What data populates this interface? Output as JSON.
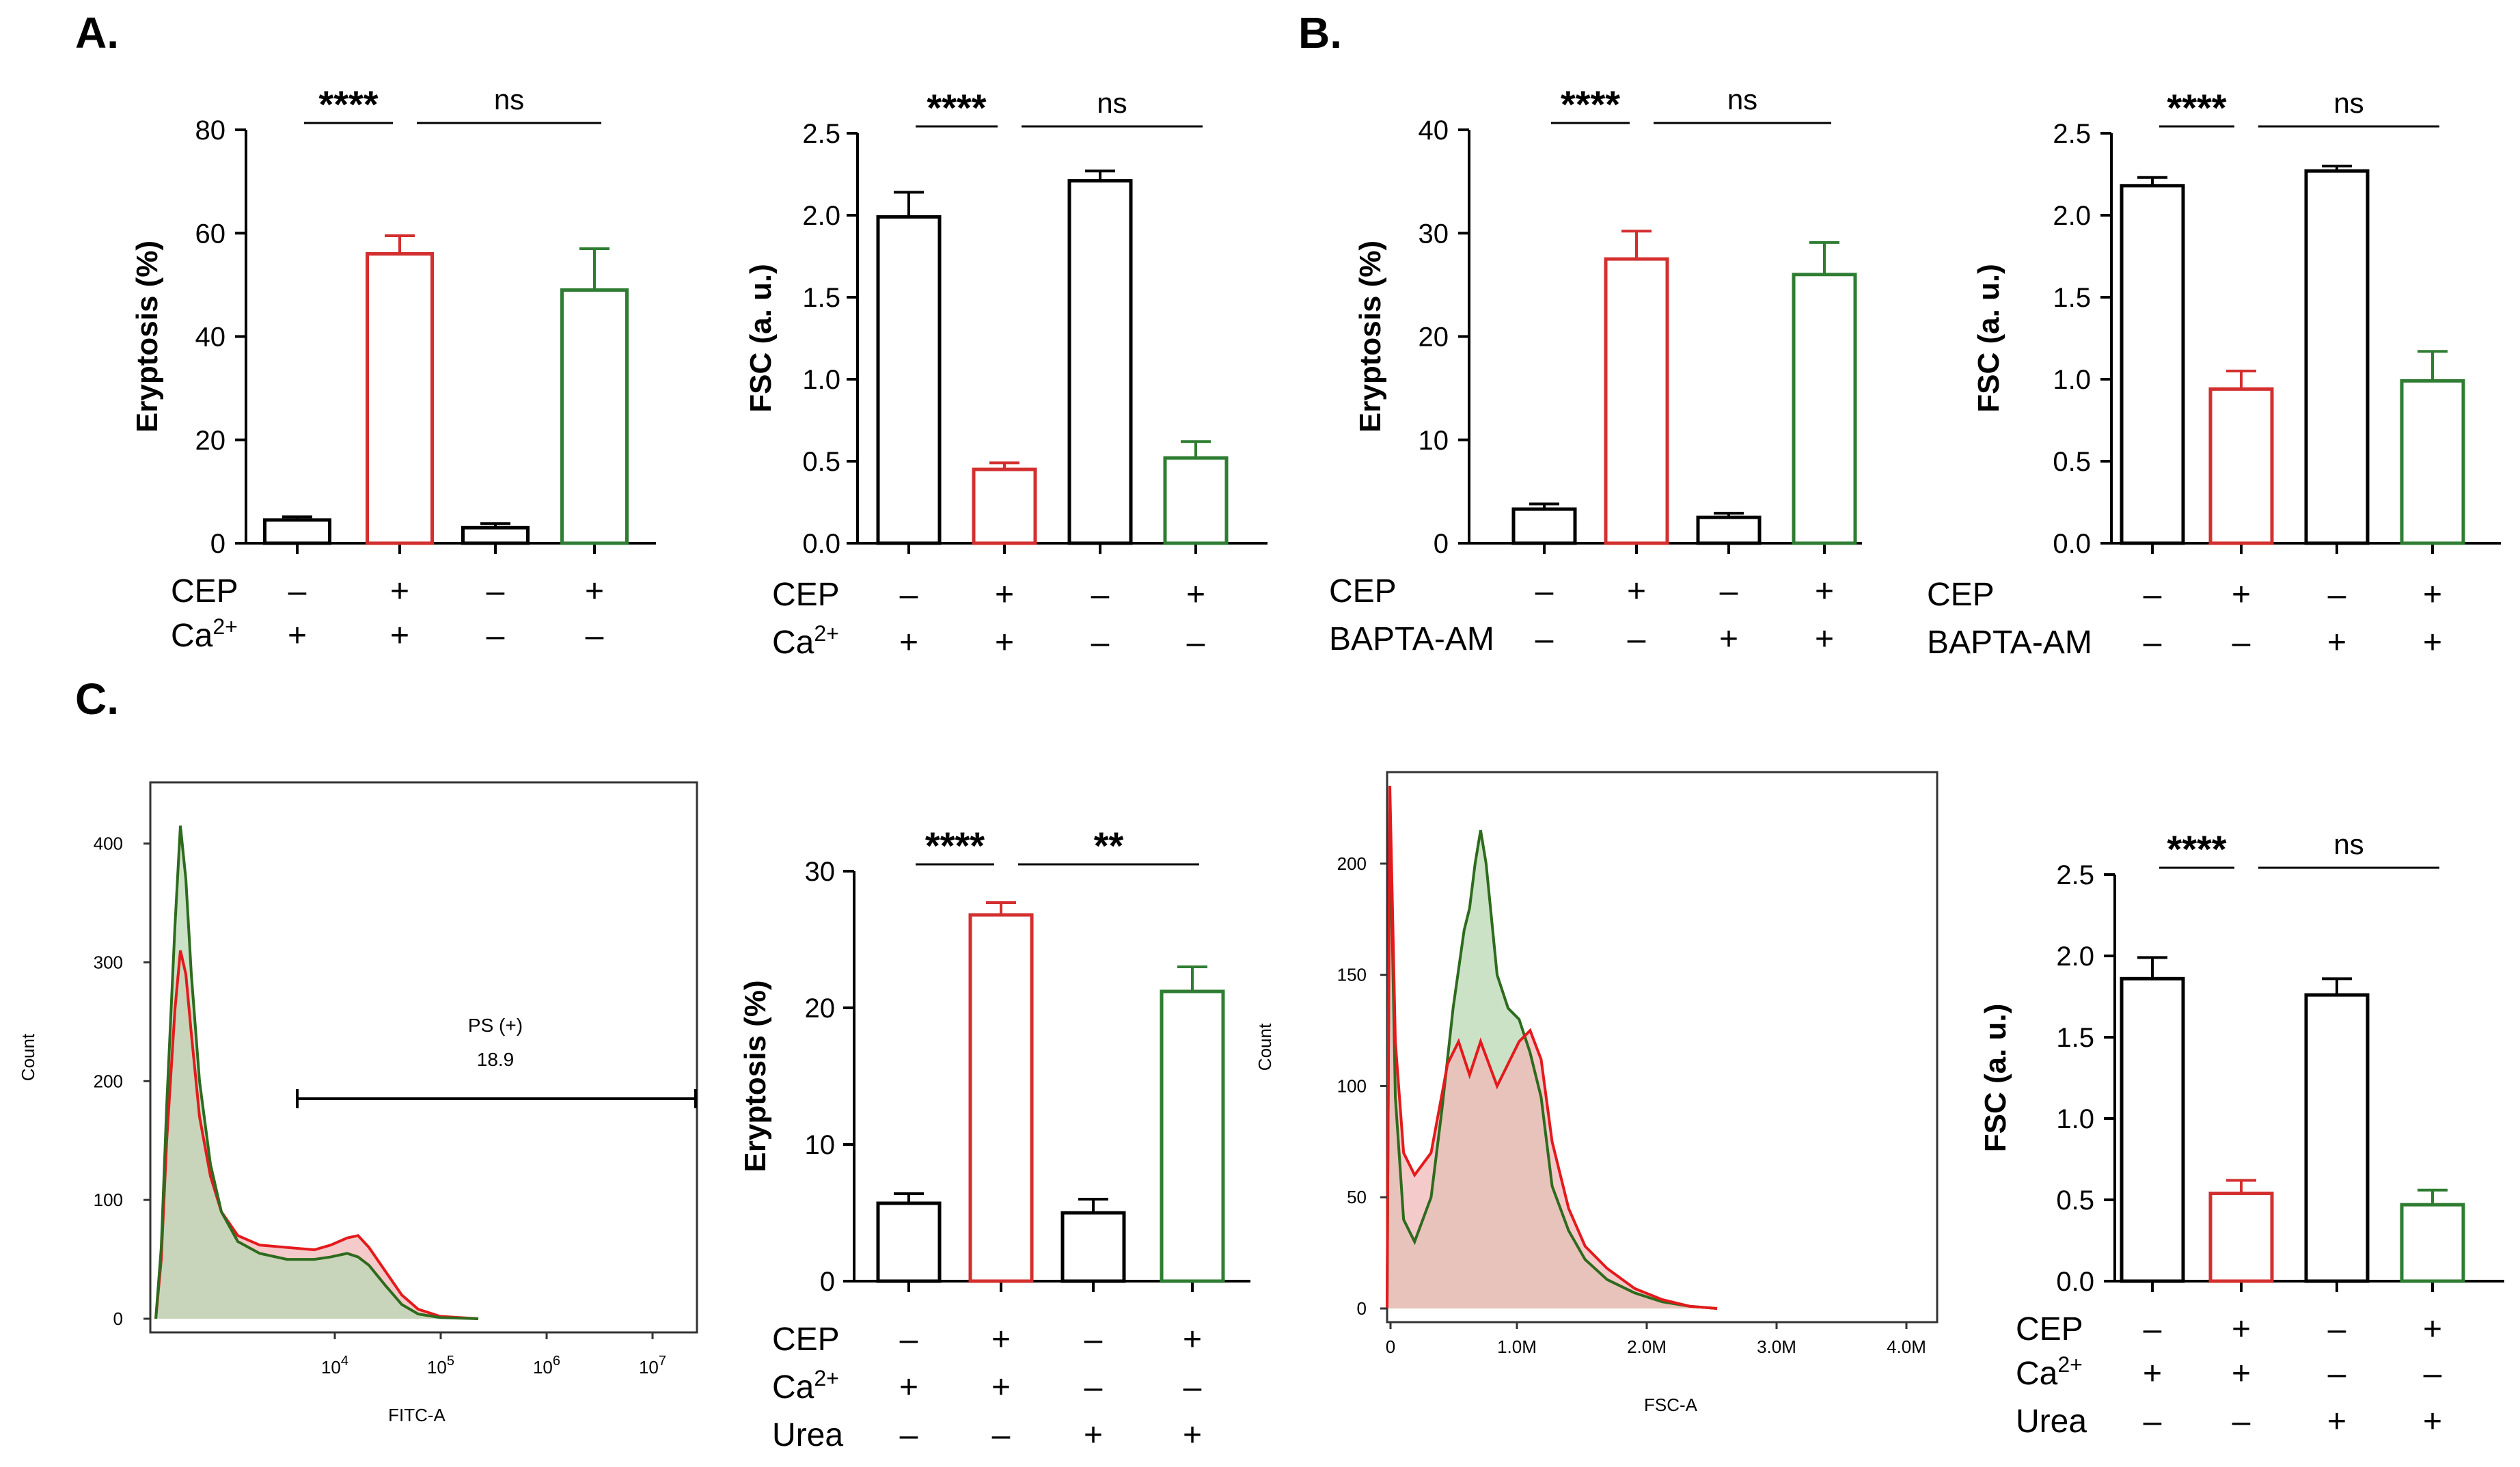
{
  "panel_labels": [
    "A.",
    "B.",
    "C."
  ],
  "colors": {
    "control": "#000000",
    "cep": "#d32f2f",
    "cep_treated": "#2e7d32",
    "hist_red_line": "#e41a1c",
    "hist_green_line": "#2e6b1e",
    "hist_red_fill": "#f2b8b8",
    "hist_green_fill": "#b9d8b4",
    "hist_overlap_fill": "#cda69a"
  },
  "chart_data": [
    {
      "id": "A1",
      "type": "bar",
      "ylabel": "Eryptosis (%)",
      "ylim": [
        0,
        80
      ],
      "yticks": [
        0,
        20,
        40,
        60,
        80
      ],
      "ytick_labels": [
        "0",
        "20",
        "40",
        "60",
        "80"
      ],
      "values": [
        4.5,
        56,
        3,
        49
      ],
      "errors": [
        0.6,
        3.5,
        0.8,
        8
      ],
      "bar_colors": [
        "control",
        "cep",
        "control",
        "cep_treated"
      ],
      "conditions": [
        {
          "label": "CEP",
          "signs": [
            "–",
            "+",
            "–",
            "+"
          ]
        },
        {
          "label": "Ca",
          "sup": "2+",
          "signs": [
            "+",
            "+",
            "–",
            "–"
          ]
        }
      ],
      "sig": [
        {
          "from": 0,
          "to": 1,
          "text": "****"
        },
        {
          "from": 1,
          "to": 3,
          "text": "ns"
        }
      ]
    },
    {
      "id": "A2",
      "type": "bar",
      "ylabel": "FSC (a. u.)",
      "ylim": [
        0,
        2.5
      ],
      "yticks": [
        0,
        0.5,
        1.0,
        1.5,
        2.0,
        2.5
      ],
      "ytick_labels": [
        "0.0",
        "0.5",
        "1.0",
        "1.5",
        "2.0",
        "2.5"
      ],
      "values": [
        1.99,
        0.45,
        2.21,
        0.52
      ],
      "errors": [
        0.15,
        0.04,
        0.06,
        0.1
      ],
      "bar_colors": [
        "control",
        "cep",
        "control",
        "cep_treated"
      ],
      "conditions": [
        {
          "label": "CEP",
          "signs": [
            "–",
            "+",
            "–",
            "+"
          ]
        },
        {
          "label": "Ca",
          "sup": "2+",
          "signs": [
            "+",
            "+",
            "–",
            "–"
          ]
        }
      ],
      "sig": [
        {
          "from": 0,
          "to": 1,
          "text": "****"
        },
        {
          "from": 1,
          "to": 3,
          "text": "ns"
        }
      ]
    },
    {
      "id": "B1",
      "type": "bar",
      "ylabel": "Eryptosis (%)",
      "ylim": [
        0,
        40
      ],
      "yticks": [
        0,
        10,
        20,
        30,
        40
      ],
      "ytick_labels": [
        "0",
        "10",
        "20",
        "30",
        "40"
      ],
      "values": [
        3.3,
        27.5,
        2.5,
        26
      ],
      "errors": [
        0.5,
        2.7,
        0.4,
        3.1
      ],
      "bar_colors": [
        "control",
        "cep",
        "control",
        "cep_treated"
      ],
      "conditions": [
        {
          "label": "CEP",
          "signs": [
            "–",
            "+",
            "–",
            "+"
          ]
        },
        {
          "label": "BAPTA-AM",
          "signs": [
            "–",
            "–",
            "+",
            "+"
          ]
        }
      ],
      "sig": [
        {
          "from": 0,
          "to": 1,
          "text": "****"
        },
        {
          "from": 1,
          "to": 3,
          "text": "ns"
        }
      ]
    },
    {
      "id": "B2",
      "type": "bar",
      "ylabel": "FSC (a. u.)",
      "ylim": [
        0,
        2.5
      ],
      "yticks": [
        0,
        0.5,
        1.0,
        1.5,
        2.0,
        2.5
      ],
      "ytick_labels": [
        "0.0",
        "0.5",
        "1.0",
        "1.5",
        "2.0",
        "2.5"
      ],
      "values": [
        2.18,
        0.94,
        2.27,
        0.99
      ],
      "errors": [
        0.05,
        0.11,
        0.03,
        0.18
      ],
      "bar_colors": [
        "control",
        "cep",
        "control",
        "cep_treated"
      ],
      "conditions": [
        {
          "label": "CEP",
          "signs": [
            "–",
            "+",
            "–",
            "+"
          ]
        },
        {
          "label": "BAPTA-AM",
          "signs": [
            "–",
            "–",
            "+",
            "+"
          ]
        }
      ],
      "sig": [
        {
          "from": 0,
          "to": 1,
          "text": "****"
        },
        {
          "from": 1,
          "to": 3,
          "text": "ns"
        }
      ]
    },
    {
      "id": "C1",
      "type": "area",
      "xlabel": "FITC-A",
      "ylabel": "Count",
      "yticks": [
        0,
        100,
        200,
        300,
        400
      ],
      "ytick_labels": [
        "0",
        "100",
        "200",
        "300",
        "400"
      ],
      "xtick_labels": [
        {
          "base": "10",
          "exp": "4"
        },
        {
          "base": "10",
          "exp": "5"
        },
        {
          "base": "10",
          "exp": "6"
        },
        {
          "base": "10",
          "exp": "7"
        }
      ],
      "gate": {
        "label": "PS (+)",
        "value": "18.9"
      },
      "series": [
        {
          "name": "red",
          "points": [
            [
              0.01,
              0
            ],
            [
              0.02,
              50
            ],
            [
              0.03,
              150
            ],
            [
              0.045,
              260
            ],
            [
              0.055,
              310
            ],
            [
              0.065,
              290
            ],
            [
              0.075,
              240
            ],
            [
              0.09,
              170
            ],
            [
              0.11,
              120
            ],
            [
              0.13,
              90
            ],
            [
              0.16,
              70
            ],
            [
              0.2,
              62
            ],
            [
              0.25,
              60
            ],
            [
              0.3,
              58
            ],
            [
              0.33,
              62
            ],
            [
              0.36,
              68
            ],
            [
              0.38,
              70
            ],
            [
              0.4,
              60
            ],
            [
              0.43,
              40
            ],
            [
              0.46,
              20
            ],
            [
              0.49,
              8
            ],
            [
              0.53,
              2
            ],
            [
              0.6,
              0
            ]
          ]
        },
        {
          "name": "green",
          "points": [
            [
              0.01,
              0
            ],
            [
              0.02,
              60
            ],
            [
              0.03,
              180
            ],
            [
              0.045,
              330
            ],
            [
              0.055,
              415
            ],
            [
              0.065,
              370
            ],
            [
              0.075,
              290
            ],
            [
              0.09,
              200
            ],
            [
              0.11,
              130
            ],
            [
              0.13,
              90
            ],
            [
              0.16,
              65
            ],
            [
              0.2,
              55
            ],
            [
              0.25,
              50
            ],
            [
              0.3,
              50
            ],
            [
              0.33,
              52
            ],
            [
              0.36,
              55
            ],
            [
              0.38,
              52
            ],
            [
              0.4,
              45
            ],
            [
              0.43,
              28
            ],
            [
              0.46,
              12
            ],
            [
              0.49,
              4
            ],
            [
              0.53,
              1
            ],
            [
              0.6,
              0
            ]
          ]
        }
      ]
    },
    {
      "id": "C2",
      "type": "bar",
      "ylabel": "Eryptosis (%)",
      "ylim": [
        0,
        30
      ],
      "yticks": [
        0,
        10,
        20,
        30
      ],
      "ytick_labels": [
        "0",
        "10",
        "20",
        "30"
      ],
      "values": [
        5.7,
        26.8,
        5,
        21.2
      ],
      "errors": [
        0.7,
        0.9,
        1.0,
        1.8
      ],
      "bar_colors": [
        "control",
        "cep",
        "control",
        "cep_treated"
      ],
      "conditions": [
        {
          "label": "CEP",
          "signs": [
            "–",
            "+",
            "–",
            "+"
          ]
        },
        {
          "label": "Ca",
          "sup": "2+",
          "signs": [
            "+",
            "+",
            "–",
            "–"
          ]
        },
        {
          "label": "Urea",
          "signs": [
            "–",
            "–",
            "+",
            "+"
          ]
        }
      ],
      "sig": [
        {
          "from": 0,
          "to": 1,
          "text": "****"
        },
        {
          "from": 1,
          "to": 3,
          "text": "**"
        }
      ]
    },
    {
      "id": "C3",
      "type": "area",
      "xlabel": "FSC-A",
      "ylabel": "Count",
      "yticks": [
        0,
        50,
        100,
        150,
        200
      ],
      "ytick_labels": [
        "0",
        "50",
        "100",
        "150",
        "200"
      ],
      "xtick_labels": [
        "0",
        "1.0M",
        "2.0M",
        "3.0M",
        "4.0M"
      ],
      "series": [
        {
          "name": "red",
          "points": [
            [
              0.0,
              0
            ],
            [
              0.005,
              235
            ],
            [
              0.015,
              120
            ],
            [
              0.03,
              70
            ],
            [
              0.05,
              60
            ],
            [
              0.08,
              70
            ],
            [
              0.11,
              110
            ],
            [
              0.13,
              120
            ],
            [
              0.15,
              105
            ],
            [
              0.17,
              120
            ],
            [
              0.2,
              100
            ],
            [
              0.22,
              110
            ],
            [
              0.24,
              120
            ],
            [
              0.26,
              125
            ],
            [
              0.28,
              112
            ],
            [
              0.3,
              75
            ],
            [
              0.33,
              45
            ],
            [
              0.36,
              28
            ],
            [
              0.4,
              18
            ],
            [
              0.45,
              9
            ],
            [
              0.5,
              4
            ],
            [
              0.55,
              1
            ],
            [
              0.6,
              0
            ]
          ]
        },
        {
          "name": "green",
          "points": [
            [
              0.0,
              0
            ],
            [
              0.005,
              225
            ],
            [
              0.015,
              95
            ],
            [
              0.03,
              40
            ],
            [
              0.05,
              30
            ],
            [
              0.08,
              50
            ],
            [
              0.1,
              90
            ],
            [
              0.12,
              135
            ],
            [
              0.14,
              170
            ],
            [
              0.15,
              180
            ],
            [
              0.16,
              200
            ],
            [
              0.17,
              215
            ],
            [
              0.18,
              200
            ],
            [
              0.2,
              150
            ],
            [
              0.22,
              135
            ],
            [
              0.24,
              130
            ],
            [
              0.26,
              115
            ],
            [
              0.28,
              95
            ],
            [
              0.3,
              55
            ],
            [
              0.33,
              35
            ],
            [
              0.36,
              22
            ],
            [
              0.4,
              13
            ],
            [
              0.45,
              7
            ],
            [
              0.5,
              3
            ],
            [
              0.55,
              1
            ],
            [
              0.6,
              0
            ]
          ]
        }
      ]
    },
    {
      "id": "C4",
      "type": "bar",
      "ylabel": "FSC (a. u.)",
      "ylim": [
        0,
        2.5
      ],
      "yticks": [
        0,
        0.5,
        1.0,
        1.5,
        2.0,
        2.5
      ],
      "ytick_labels": [
        "0.0",
        "0.5",
        "1.0",
        "1.5",
        "2.0",
        "2.5"
      ],
      "values": [
        1.86,
        0.54,
        1.76,
        0.47
      ],
      "errors": [
        0.13,
        0.08,
        0.1,
        0.09
      ],
      "bar_colors": [
        "control",
        "cep",
        "control",
        "cep_treated"
      ],
      "conditions": [
        {
          "label": "CEP",
          "signs": [
            "–",
            "+",
            "–",
            "+"
          ]
        },
        {
          "label": "Ca",
          "sup": "2+",
          "signs": [
            "+",
            "+",
            "–",
            "–"
          ]
        },
        {
          "label": "Urea",
          "signs": [
            "–",
            "–",
            "+",
            "+"
          ]
        }
      ],
      "sig": [
        {
          "from": 0,
          "to": 1,
          "text": "****"
        },
        {
          "from": 1,
          "to": 3,
          "text": "ns"
        }
      ]
    }
  ]
}
